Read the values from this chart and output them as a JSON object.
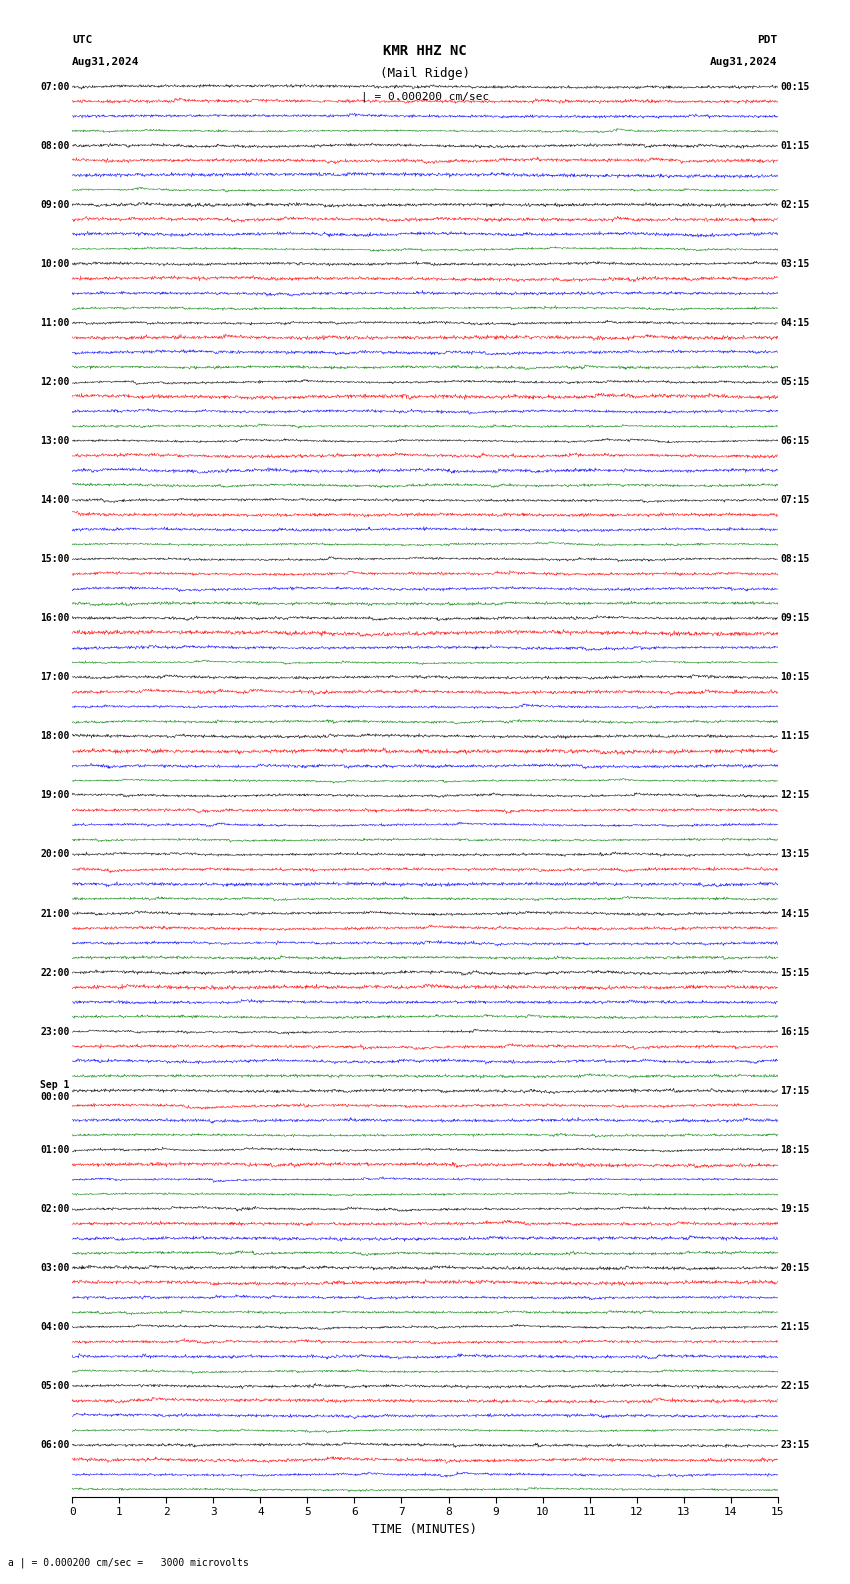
{
  "title_line1": "KMR HHZ NC",
  "title_line2": "(Mail Ridge)",
  "scale_label": "| = 0.000200 cm/sec",
  "utc_label": "UTC",
  "pdt_label": "PDT",
  "date_left": "Aug31,2024",
  "date_right": "Aug31,2024",
  "bottom_label": "a | = 0.000200 cm/sec =   3000 microvolts",
  "xlabel": "TIME (MINUTES)",
  "left_times": [
    "07:00",
    "08:00",
    "09:00",
    "10:00",
    "11:00",
    "12:00",
    "13:00",
    "14:00",
    "15:00",
    "16:00",
    "17:00",
    "18:00",
    "19:00",
    "20:00",
    "21:00",
    "22:00",
    "23:00",
    "Sep 1\n00:00",
    "01:00",
    "02:00",
    "03:00",
    "04:00",
    "05:00",
    "06:00"
  ],
  "right_times": [
    "00:15",
    "01:15",
    "02:15",
    "03:15",
    "04:15",
    "05:15",
    "06:15",
    "07:15",
    "08:15",
    "09:15",
    "10:15",
    "11:15",
    "12:15",
    "13:15",
    "14:15",
    "15:15",
    "16:15",
    "17:15",
    "18:15",
    "19:15",
    "20:15",
    "21:15",
    "22:15",
    "23:15"
  ],
  "colors": [
    "black",
    "red",
    "blue",
    "green"
  ],
  "n_rows": 24,
  "n_channels": 4,
  "trace_duration_minutes": 15,
  "bg_color": "white",
  "trace_amplitude": 0.35,
  "noise_amplitude": 0.15,
  "seed": 42
}
